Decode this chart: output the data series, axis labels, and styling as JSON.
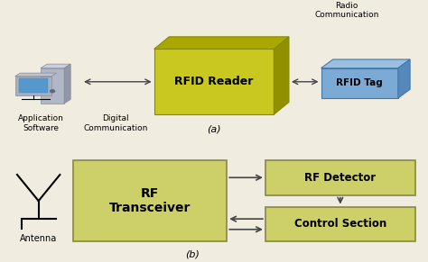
{
  "bg_color": "#f0ede0",
  "rfid_reader_front_color": "#c8c820",
  "rfid_reader_top_color": "#a8a800",
  "rfid_reader_right_color": "#909000",
  "rfid_reader_label": "RFID Reader",
  "rfid_tag_front_color": "#7baad4",
  "rfid_tag_top_color": "#9bbfe0",
  "rfid_tag_right_color": "#5588bb",
  "rfid_tag_label": "RFID Tag",
  "rf_transceiver_color": "#cdd068",
  "rf_transceiver_border": "#888840",
  "rf_transceiver_label": "RF\nTransceiver",
  "rf_detector_color": "#cdd068",
  "rf_detector_border": "#888840",
  "rf_detector_label": "RF Detector",
  "control_section_color": "#cdd068",
  "control_section_border": "#888840",
  "control_section_label": "Control Section",
  "label_a": "(a)",
  "label_b": "(b)",
  "radio_comm_label": "Radio\nCommunication",
  "digital_comm_label": "Digital\nCommunication",
  "app_software_label": "Application\nSoftware",
  "antenna_label": "Antenna",
  "arrow_color": "#444444",
  "font_size": 7
}
